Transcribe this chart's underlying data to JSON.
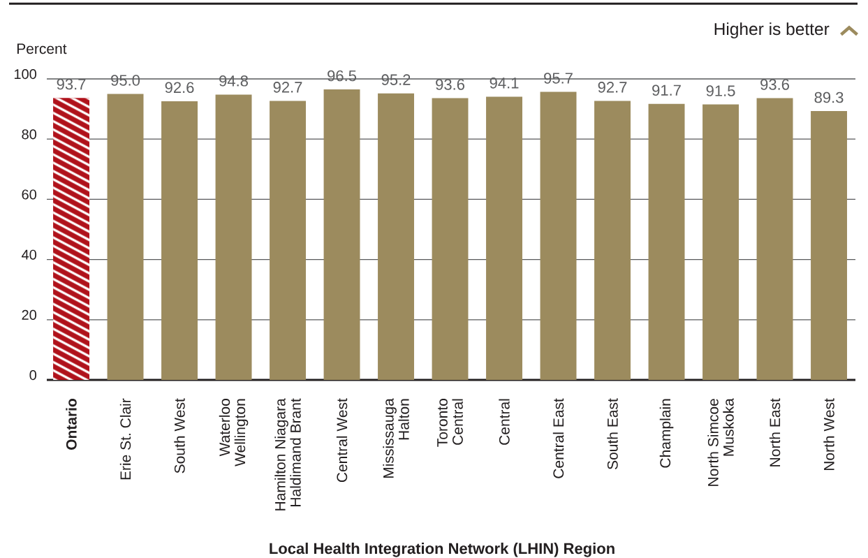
{
  "chart_data": {
    "type": "bar",
    "ylabel": "Percent",
    "xlabel": "Local Health Integration Network (LHIN) Region",
    "annotations": [
      "Higher is better"
    ],
    "categories": [
      "Ontario",
      "Erie St. Clair",
      "South West",
      "Waterloo Wellington",
      "Hamilton Niagara Haldimand Brant",
      "Central West",
      "Mississauga Halton",
      "Toronto Central",
      "Central",
      "Central East",
      "South East",
      "Champlain",
      "North Simcoe Muskoka",
      "North East",
      "North West"
    ],
    "values": [
      93.7,
      95.0,
      92.6,
      94.8,
      92.7,
      96.5,
      95.2,
      93.6,
      94.1,
      95.7,
      92.7,
      91.7,
      91.5,
      93.6,
      89.3
    ],
    "value_labels": [
      "93.7",
      "95.0",
      "92.6",
      "94.8",
      "92.7",
      "96.5",
      "95.2",
      "93.6",
      "94.1",
      "95.7",
      "92.7",
      "91.7",
      "91.5",
      "93.6",
      "89.3"
    ],
    "colors": [
      "#b0121b",
      "#9c8b5e",
      "#9c8b5e",
      "#9c8b5e",
      "#9c8b5e",
      "#9c8b5e",
      "#9c8b5e",
      "#9c8b5e",
      "#9c8b5e",
      "#9c8b5e",
      "#9c8b5e",
      "#9c8b5e",
      "#9c8b5e",
      "#9c8b5e",
      "#9c8b5e"
    ],
    "ylim": [
      0,
      100
    ],
    "yticks": [
      0,
      20,
      40,
      60,
      80,
      100
    ],
    "grid": "y"
  }
}
